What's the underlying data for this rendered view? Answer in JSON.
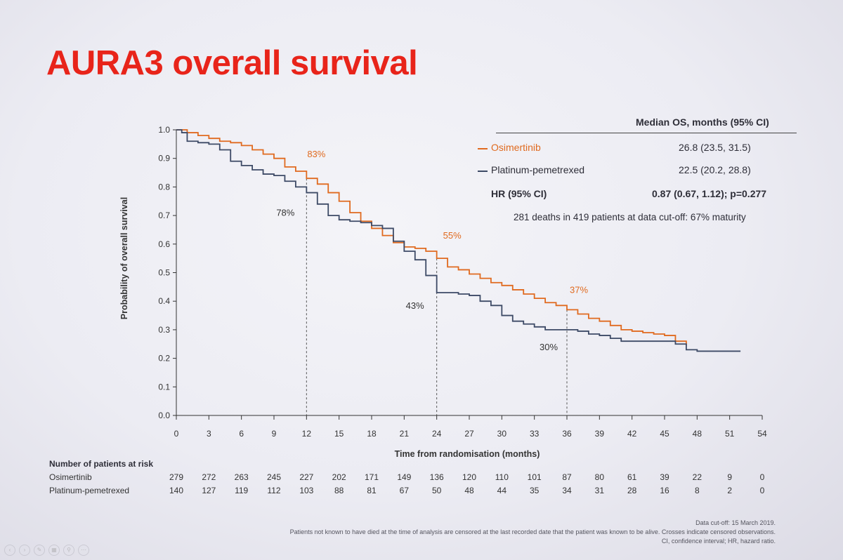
{
  "slide": {
    "title": "AURA3 overall survival",
    "accent_color": "#e8241a"
  },
  "legend": {
    "header": "Median OS, months (95% CI)",
    "rows": [
      {
        "label": "Osimertinib",
        "value": "26.8 (23.5, 31.5)",
        "color": "#e06a1f"
      },
      {
        "label": "Platinum-pemetrexed",
        "value": "22.5 (20.2, 28.8)",
        "color": "#3d4a66"
      },
      {
        "label": "HR (95% CI)",
        "value": "0.87 (0.67, 1.12); p=0.277",
        "color": ""
      }
    ],
    "note": "281 deaths in 419 patients at data cut-off: 67% maturity"
  },
  "chart_data": {
    "type": "line",
    "title": "AURA3 overall survival",
    "xlabel": "Time from randomisation (months)",
    "ylabel": "Probability of overall survival",
    "xlim": [
      0,
      54
    ],
    "ylim": [
      0,
      1
    ],
    "x_ticks": [
      0,
      3,
      6,
      9,
      12,
      15,
      18,
      21,
      24,
      27,
      30,
      33,
      36,
      39,
      42,
      45,
      48,
      51,
      54
    ],
    "y_ticks": [
      "0.0",
      "0.1",
      "0.2",
      "0.3",
      "0.4",
      "0.5",
      "0.6",
      "0.7",
      "0.8",
      "0.9",
      "1.0"
    ],
    "series": [
      {
        "name": "Osimertinib",
        "color": "#e06a1f",
        "points": [
          [
            0,
            1.0
          ],
          [
            1,
            0.99
          ],
          [
            2,
            0.98
          ],
          [
            3,
            0.97
          ],
          [
            4,
            0.96
          ],
          [
            5,
            0.955
          ],
          [
            6,
            0.945
          ],
          [
            7,
            0.93
          ],
          [
            8,
            0.915
          ],
          [
            9,
            0.9
          ],
          [
            10,
            0.87
          ],
          [
            11,
            0.855
          ],
          [
            12,
            0.83
          ],
          [
            13,
            0.81
          ],
          [
            14,
            0.78
          ],
          [
            15,
            0.75
          ],
          [
            16,
            0.71
          ],
          [
            17,
            0.68
          ],
          [
            18,
            0.655
          ],
          [
            19,
            0.63
          ],
          [
            20,
            0.605
          ],
          [
            21,
            0.59
          ],
          [
            22,
            0.585
          ],
          [
            23,
            0.575
          ],
          [
            24,
            0.55
          ],
          [
            25,
            0.52
          ],
          [
            26,
            0.51
          ],
          [
            27,
            0.495
          ],
          [
            28,
            0.48
          ],
          [
            29,
            0.465
          ],
          [
            30,
            0.455
          ],
          [
            31,
            0.44
          ],
          [
            32,
            0.425
          ],
          [
            33,
            0.41
          ],
          [
            34,
            0.395
          ],
          [
            35,
            0.385
          ],
          [
            36,
            0.37
          ],
          [
            37,
            0.355
          ],
          [
            38,
            0.34
          ],
          [
            39,
            0.33
          ],
          [
            40,
            0.315
          ],
          [
            41,
            0.3
          ],
          [
            42,
            0.295
          ],
          [
            43,
            0.29
          ],
          [
            44,
            0.285
          ],
          [
            45,
            0.28
          ],
          [
            46,
            0.26
          ],
          [
            47,
            0.245
          ]
        ]
      },
      {
        "name": "Platinum-pemetrexed",
        "color": "#3d4a66",
        "points": [
          [
            0,
            1.0
          ],
          [
            0.5,
            0.99
          ],
          [
            1,
            0.96
          ],
          [
            2,
            0.955
          ],
          [
            3,
            0.95
          ],
          [
            4,
            0.93
          ],
          [
            5,
            0.89
          ],
          [
            6,
            0.875
          ],
          [
            7,
            0.86
          ],
          [
            8,
            0.845
          ],
          [
            9,
            0.84
          ],
          [
            10,
            0.82
          ],
          [
            11,
            0.8
          ],
          [
            12,
            0.78
          ],
          [
            13,
            0.74
          ],
          [
            14,
            0.7
          ],
          [
            15,
            0.685
          ],
          [
            16,
            0.68
          ],
          [
            17,
            0.675
          ],
          [
            18,
            0.665
          ],
          [
            19,
            0.655
          ],
          [
            20,
            0.61
          ],
          [
            21,
            0.575
          ],
          [
            22,
            0.545
          ],
          [
            23,
            0.49
          ],
          [
            24,
            0.43
          ],
          [
            25,
            0.43
          ],
          [
            26,
            0.425
          ],
          [
            27,
            0.42
          ],
          [
            28,
            0.4
          ],
          [
            29,
            0.385
          ],
          [
            30,
            0.35
          ],
          [
            31,
            0.33
          ],
          [
            32,
            0.32
          ],
          [
            33,
            0.31
          ],
          [
            34,
            0.3
          ],
          [
            35,
            0.3
          ],
          [
            36,
            0.3
          ],
          [
            37,
            0.295
          ],
          [
            38,
            0.285
          ],
          [
            39,
            0.28
          ],
          [
            40,
            0.27
          ],
          [
            41,
            0.26
          ],
          [
            42,
            0.26
          ],
          [
            43,
            0.26
          ],
          [
            44,
            0.26
          ],
          [
            45,
            0.26
          ],
          [
            46,
            0.25
          ],
          [
            47,
            0.23
          ],
          [
            48,
            0.225
          ],
          [
            52,
            0.225
          ]
        ]
      }
    ],
    "annotations": [
      {
        "text": "83%",
        "series": "Osimertinib",
        "x": 12,
        "y": 0.83
      },
      {
        "text": "78%",
        "series": "Platinum-pemetrexed",
        "x": 12,
        "y": 0.78
      },
      {
        "text": "55%",
        "series": "Osimertinib",
        "x": 24,
        "y": 0.55
      },
      {
        "text": "43%",
        "series": "Platinum-pemetrexed",
        "x": 24,
        "y": 0.43
      },
      {
        "text": "37%",
        "series": "Osimertinib",
        "x": 36,
        "y": 0.37
      },
      {
        "text": "30%",
        "series": "Platinum-pemetrexed",
        "x": 36,
        "y": 0.3
      }
    ],
    "reference_lines_x": [
      12,
      24,
      36
    ]
  },
  "risk_table": {
    "title": "Number of patients at risk",
    "columns": [
      0,
      3,
      6,
      9,
      12,
      15,
      18,
      21,
      24,
      27,
      30,
      33,
      36,
      39,
      42,
      45,
      48,
      51,
      54
    ],
    "rows": [
      {
        "label": "Osimertinib",
        "values": [
          "279",
          "272",
          "263",
          "245",
          "227",
          "202",
          "171",
          "149",
          "136",
          "120",
          "110",
          "101",
          "87",
          "80",
          "61",
          "39",
          "22",
          "9",
          "0"
        ]
      },
      {
        "label": "Platinum-pemetrexed",
        "values": [
          "140",
          "127",
          "119",
          "112",
          "103",
          "88",
          "81",
          "67",
          "50",
          "48",
          "44",
          "35",
          "34",
          "31",
          "28",
          "16",
          "8",
          "2",
          "0"
        ]
      }
    ]
  },
  "footnotes": [
    "Data cut-off: 15 March 2019.",
    "Patients not known to have died at the time of analysis are censored at the last recorded date that the patient was known to be alive. Crosses indicate censored observations.",
    "CI, confidence interval; HR, hazard ratio."
  ],
  "toolbar_icons": [
    "back-icon",
    "forward-icon",
    "pen-icon",
    "grid-icon",
    "search-icon",
    "menu-icon"
  ]
}
